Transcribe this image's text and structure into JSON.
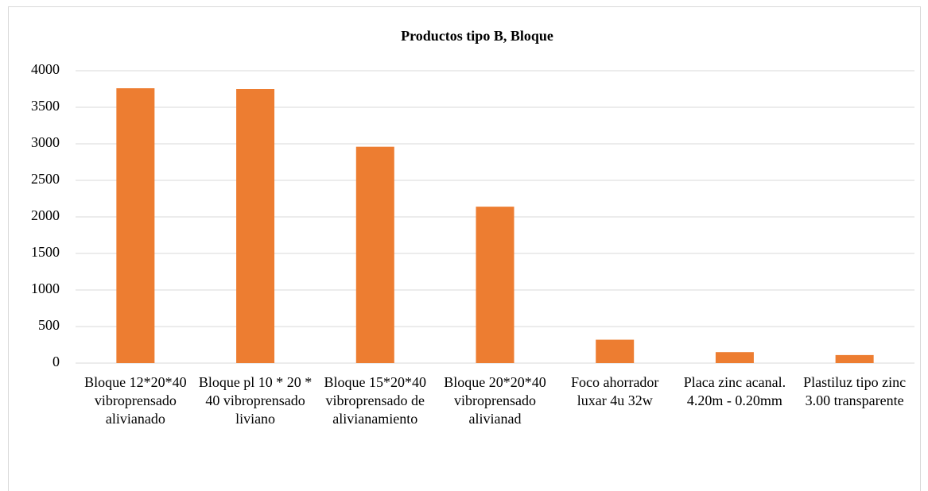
{
  "chart_data": {
    "type": "bar",
    "title": "Productos tipo B, Bloque",
    "categories": [
      "Bloque 12*20*40 vibroprensado alivianado",
      "Bloque pl 10 * 20 * 40 vibroprensado liviano",
      "Bloque 15*20*40 vibroprensado de alivianamiento",
      "Bloque 20*20*40 vibroprensado alivianad",
      "Foco ahorrador luxar 4u 32w",
      "Placa zinc acanal. 4.20m - 0.20mm",
      "Plastiluz tipo zinc 3.00 transparente"
    ],
    "values": [
      3760,
      3750,
      2960,
      2140,
      320,
      150,
      110
    ],
    "color": "#ed7d31",
    "ylim": [
      0,
      4000
    ],
    "yticks": [
      0,
      500,
      1000,
      1500,
      2000,
      2500,
      3000,
      3500,
      4000
    ],
    "grid": true
  }
}
